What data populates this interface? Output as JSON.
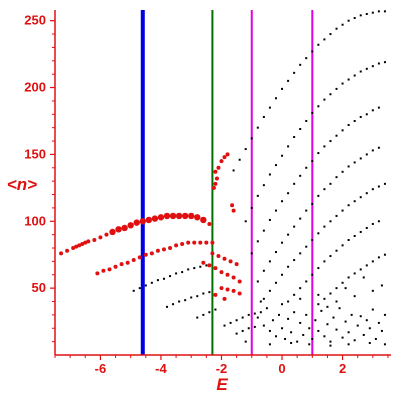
{
  "chart_data": {
    "type": "scatter",
    "xlabel": "E",
    "ylabel": "<n>",
    "xlim": [
      -7.5,
      3.6
    ],
    "ylim": [
      0,
      258
    ],
    "xticks": [
      -6,
      -4,
      -2,
      0,
      2
    ],
    "yticks": [
      50,
      100,
      150,
      200,
      250
    ],
    "colors": {
      "axis": "#e01010",
      "red_points": "#e01010",
      "black_points": "#000000",
      "line_blue": "#0000e0",
      "line_green": "#007000",
      "line_magenta": "#e000e0"
    },
    "vertical_lines": [
      {
        "x": -4.6,
        "color": "#0000e0"
      },
      {
        "x": -2.3,
        "color": "#007000"
      },
      {
        "x": -1.0,
        "color": "#e000e0"
      },
      {
        "x": 1.0,
        "color": "#e000e0"
      }
    ],
    "red_points": [
      [
        -7.3,
        76
      ],
      [
        -7.1,
        78
      ],
      [
        -6.9,
        80
      ],
      [
        -6.8,
        81
      ],
      [
        -6.7,
        82
      ],
      [
        -6.6,
        83
      ],
      [
        -6.5,
        84
      ],
      [
        -6.4,
        85
      ],
      [
        -6.2,
        86
      ],
      [
        -6.0,
        88
      ],
      [
        -5.8,
        90
      ],
      [
        -5.6,
        92
      ],
      [
        -5.4,
        94
      ],
      [
        -5.2,
        95
      ],
      [
        -5.0,
        97
      ],
      [
        -4.8,
        99
      ],
      [
        -4.6,
        100
      ],
      [
        -4.4,
        101
      ],
      [
        -4.2,
        102
      ],
      [
        -4.0,
        103
      ],
      [
        -3.8,
        104
      ],
      [
        -3.6,
        104
      ],
      [
        -3.4,
        104
      ],
      [
        -3.2,
        104
      ],
      [
        -3.0,
        104
      ],
      [
        -2.8,
        103
      ],
      [
        -2.6,
        101
      ],
      [
        -2.4,
        98
      ],
      [
        -6.1,
        61
      ],
      [
        -5.9,
        63
      ],
      [
        -5.7,
        64
      ],
      [
        -5.5,
        66
      ],
      [
        -5.3,
        68
      ],
      [
        -5.1,
        69
      ],
      [
        -4.9,
        71
      ],
      [
        -4.7,
        73
      ],
      [
        -4.5,
        75
      ],
      [
        -4.3,
        76
      ],
      [
        -4.1,
        78
      ],
      [
        -3.9,
        79
      ],
      [
        -3.7,
        80
      ],
      [
        -3.5,
        82
      ],
      [
        -3.3,
        83
      ],
      [
        -3.1,
        84
      ],
      [
        -2.9,
        84
      ],
      [
        -2.7,
        84
      ],
      [
        -2.5,
        84
      ],
      [
        -2.3,
        84
      ],
      [
        -2.25,
        125
      ],
      [
        -2.2,
        128
      ],
      [
        -2.15,
        132
      ],
      [
        -2.2,
        137
      ],
      [
        -2.1,
        140
      ],
      [
        -2.0,
        145
      ],
      [
        -1.9,
        148
      ],
      [
        -1.8,
        150
      ],
      [
        -1.6,
        108
      ],
      [
        -1.65,
        112
      ],
      [
        -2.6,
        69
      ],
      [
        -2.4,
        67
      ],
      [
        -2.2,
        65
      ],
      [
        -2.0,
        62
      ],
      [
        -1.8,
        60
      ],
      [
        -1.6,
        58
      ],
      [
        -1.4,
        55
      ],
      [
        -2.3,
        76
      ],
      [
        -2.1,
        74
      ],
      [
        -1.9,
        72
      ],
      [
        -1.7,
        70
      ],
      [
        -1.5,
        68
      ],
      [
        -2.0,
        50
      ],
      [
        -1.8,
        49
      ],
      [
        -1.6,
        48
      ],
      [
        -1.4,
        46
      ],
      [
        -2.2,
        45
      ],
      [
        -1.9,
        42
      ]
    ],
    "black_points_upper_curve": [
      [
        -1.6,
        138
      ],
      [
        -1.4,
        146
      ],
      [
        -1.2,
        154
      ],
      [
        -1.0,
        162
      ],
      [
        -0.8,
        170
      ],
      [
        -0.6,
        178
      ],
      [
        -0.4,
        185
      ],
      [
        -0.2,
        192
      ],
      [
        0.0,
        199
      ],
      [
        0.2,
        205
      ],
      [
        0.4,
        211
      ],
      [
        0.6,
        217
      ],
      [
        0.8,
        222
      ],
      [
        1.0,
        227
      ],
      [
        1.2,
        232
      ],
      [
        1.4,
        236
      ],
      [
        1.6,
        240
      ],
      [
        1.8,
        244
      ],
      [
        2.0,
        247
      ],
      [
        2.2,
        250
      ],
      [
        2.4,
        252
      ],
      [
        2.6,
        254
      ],
      [
        2.8,
        255
      ],
      [
        3.0,
        256
      ],
      [
        3.2,
        257
      ],
      [
        3.4,
        257
      ]
    ],
    "black_points_bands": [
      [
        -1.2,
        100
      ],
      [
        -1.0,
        110
      ],
      [
        -0.8,
        119
      ],
      [
        -0.6,
        127
      ],
      [
        -0.4,
        135
      ],
      [
        -0.2,
        142
      ],
      [
        0.0,
        149
      ],
      [
        0.2,
        156
      ],
      [
        0.4,
        163
      ],
      [
        0.6,
        169
      ],
      [
        0.8,
        175
      ],
      [
        1.0,
        181
      ],
      [
        1.2,
        186
      ],
      [
        1.4,
        191
      ],
      [
        1.6,
        195
      ],
      [
        1.8,
        199
      ],
      [
        2.0,
        203
      ],
      [
        2.2,
        206
      ],
      [
        2.4,
        209
      ],
      [
        2.6,
        212
      ],
      [
        2.8,
        214
      ],
      [
        3.0,
        216
      ],
      [
        3.2,
        218
      ],
      [
        3.4,
        219
      ],
      [
        -1.0,
        76
      ],
      [
        -0.8,
        85
      ],
      [
        -0.6,
        93
      ],
      [
        -0.4,
        101
      ],
      [
        -0.2,
        108
      ],
      [
        0.0,
        115
      ],
      [
        0.2,
        121
      ],
      [
        0.4,
        128
      ],
      [
        0.6,
        134
      ],
      [
        0.8,
        140
      ],
      [
        1.0,
        145
      ],
      [
        1.2,
        151
      ],
      [
        1.4,
        156
      ],
      [
        1.6,
        160
      ],
      [
        1.8,
        164
      ],
      [
        2.0,
        168
      ],
      [
        2.2,
        172
      ],
      [
        2.4,
        175
      ],
      [
        2.6,
        178
      ],
      [
        2.8,
        180
      ],
      [
        3.0,
        183
      ],
      [
        3.2,
        185
      ],
      [
        -0.8,
        55
      ],
      [
        -0.6,
        63
      ],
      [
        -0.4,
        70
      ],
      [
        -0.2,
        77
      ],
      [
        0.0,
        84
      ],
      [
        0.2,
        90
      ],
      [
        0.4,
        96
      ],
      [
        0.6,
        102
      ],
      [
        0.8,
        108
      ],
      [
        1.0,
        113
      ],
      [
        1.2,
        119
      ],
      [
        1.4,
        124
      ],
      [
        1.6,
        128
      ],
      [
        1.8,
        133
      ],
      [
        2.0,
        137
      ],
      [
        2.2,
        141
      ],
      [
        2.4,
        144
      ],
      [
        2.6,
        147
      ],
      [
        2.8,
        150
      ],
      [
        3.0,
        153
      ],
      [
        3.2,
        155
      ],
      [
        -0.6,
        42
      ],
      [
        -0.4,
        48
      ],
      [
        -0.2,
        54
      ],
      [
        0.0,
        60
      ],
      [
        0.2,
        66
      ],
      [
        0.4,
        71
      ],
      [
        0.6,
        76
      ],
      [
        0.8,
        81
      ],
      [
        1.0,
        86
      ],
      [
        1.2,
        91
      ],
      [
        1.4,
        96
      ],
      [
        1.6,
        100
      ],
      [
        1.8,
        104
      ],
      [
        2.0,
        108
      ],
      [
        2.2,
        112
      ],
      [
        2.4,
        115
      ],
      [
        2.6,
        118
      ],
      [
        2.8,
        121
      ],
      [
        3.0,
        124
      ],
      [
        3.2,
        126
      ],
      [
        3.4,
        128
      ],
      [
        0.2,
        40
      ],
      [
        0.4,
        45
      ],
      [
        0.6,
        50
      ],
      [
        0.8,
        55
      ],
      [
        1.0,
        60
      ],
      [
        1.2,
        65
      ],
      [
        1.4,
        70
      ],
      [
        1.6,
        74
      ],
      [
        1.8,
        78
      ],
      [
        2.0,
        82
      ],
      [
        2.2,
        86
      ],
      [
        2.4,
        89
      ],
      [
        2.6,
        92
      ],
      [
        2.8,
        95
      ],
      [
        3.0,
        98
      ],
      [
        3.2,
        100
      ],
      [
        1.2,
        38
      ],
      [
        1.4,
        42
      ],
      [
        1.6,
        46
      ],
      [
        1.8,
        50
      ],
      [
        2.0,
        54
      ],
      [
        2.2,
        58
      ],
      [
        2.4,
        61
      ],
      [
        2.6,
        64
      ],
      [
        2.8,
        67
      ],
      [
        3.0,
        70
      ],
      [
        3.2,
        73
      ],
      [
        3.4,
        75
      ]
    ],
    "black_points_lower_left": [
      [
        -4.9,
        48
      ],
      [
        -4.7,
        50
      ],
      [
        -4.5,
        52
      ],
      [
        -4.3,
        54
      ],
      [
        -4.1,
        56
      ],
      [
        -3.9,
        57
      ],
      [
        -3.7,
        59
      ],
      [
        -3.5,
        61
      ],
      [
        -3.3,
        62
      ],
      [
        -3.1,
        64
      ],
      [
        -2.9,
        65
      ],
      [
        -2.7,
        66
      ],
      [
        -2.5,
        67
      ],
      [
        -3.8,
        36
      ],
      [
        -3.6,
        38
      ],
      [
        -3.4,
        40
      ],
      [
        -3.2,
        41
      ],
      [
        -3.0,
        43
      ],
      [
        -2.8,
        44
      ],
      [
        -2.6,
        46
      ],
      [
        -2.4,
        47
      ],
      [
        -2.8,
        28
      ],
      [
        -2.6,
        30
      ],
      [
        -2.4,
        32
      ],
      [
        -2.2,
        34
      ],
      [
        -1.9,
        22
      ],
      [
        -1.7,
        24
      ],
      [
        -1.5,
        26
      ],
      [
        -1.3,
        28
      ],
      [
        -1.1,
        30
      ],
      [
        -0.9,
        31
      ],
      [
        -0.7,
        32
      ],
      [
        -1.5,
        16
      ],
      [
        -1.3,
        18
      ],
      [
        -1.1,
        20
      ],
      [
        -0.9,
        21
      ]
    ],
    "black_points_cloud": [
      [
        -0.8,
        28
      ],
      [
        -0.6,
        22
      ],
      [
        -0.5,
        35
      ],
      [
        -0.4,
        18
      ],
      [
        -0.3,
        26
      ],
      [
        -0.2,
        14
      ],
      [
        -0.1,
        30
      ],
      [
        0.0,
        20
      ],
      [
        0.1,
        12
      ],
      [
        0.2,
        27
      ],
      [
        0.3,
        17
      ],
      [
        0.4,
        32
      ],
      [
        0.5,
        10
      ],
      [
        0.6,
        24
      ],
      [
        0.7,
        15
      ],
      [
        0.8,
        30
      ],
      [
        0.9,
        20
      ],
      [
        1.0,
        12
      ],
      [
        1.1,
        26
      ],
      [
        1.2,
        18
      ],
      [
        1.3,
        33
      ],
      [
        1.4,
        14
      ],
      [
        1.5,
        23
      ],
      [
        1.6,
        10
      ],
      [
        1.7,
        28
      ],
      [
        1.8,
        19
      ],
      [
        1.9,
        35
      ],
      [
        2.0,
        13
      ],
      [
        2.1,
        25
      ],
      [
        2.2,
        17
      ],
      [
        2.3,
        30
      ],
      [
        2.4,
        11
      ],
      [
        2.5,
        22
      ],
      [
        2.6,
        29
      ],
      [
        2.7,
        15
      ],
      [
        2.8,
        26
      ],
      [
        2.9,
        20
      ],
      [
        3.0,
        34
      ],
      [
        3.1,
        12
      ],
      [
        3.2,
        24
      ],
      [
        3.3,
        18
      ],
      [
        3.4,
        30
      ],
      [
        -0.7,
        40
      ],
      [
        0.0,
        38
      ],
      [
        0.6,
        42
      ],
      [
        1.2,
        45
      ],
      [
        1.8,
        40
      ],
      [
        2.4,
        44
      ],
      [
        3.0,
        48
      ],
      [
        3.3,
        52
      ],
      [
        2.7,
        58
      ],
      [
        2.1,
        50
      ],
      [
        1.5,
        36
      ],
      [
        0.3,
        9
      ],
      [
        0.9,
        8
      ],
      [
        1.6,
        7
      ],
      [
        2.2,
        8
      ],
      [
        2.9,
        9
      ],
      [
        3.4,
        8
      ],
      [
        -0.4,
        8
      ],
      [
        -1.2,
        10
      ]
    ]
  }
}
